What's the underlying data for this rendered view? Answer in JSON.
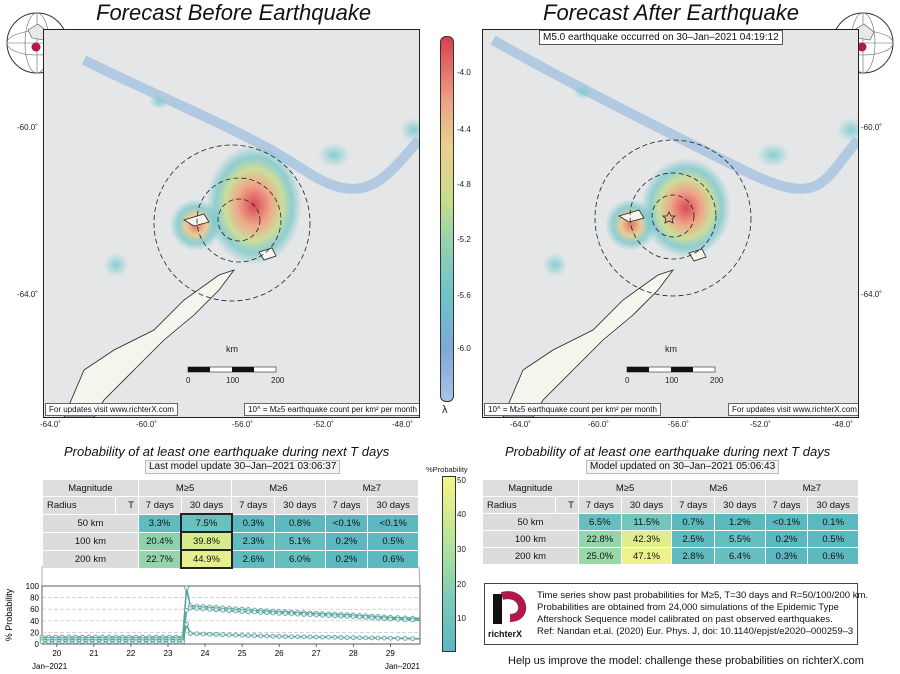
{
  "left_panel": {
    "title": "Forecast Before Earthquake",
    "credit": "For updates visit www.richterX.com",
    "density_label": "10^ = M≥5 earthquake count per km² per month",
    "lat_labels": [
      "-60.0˚",
      "-64.0˚"
    ],
    "lon_labels": [
      "-64.0˚",
      "-60.0˚",
      "-56.0˚",
      "-52.0˚",
      "-48.0˚"
    ],
    "scale_unit": "km",
    "scale_ticks": [
      "0",
      "100",
      "200"
    ]
  },
  "right_panel": {
    "title": "Forecast After Earthquake",
    "event_banner": "M5.0 earthquake occurred on 30–Jan–2021 04:19:12",
    "credit": "For updates visit www.richterX.com",
    "density_label": "10^ = M≥5 earthquake count per km² per month",
    "lat_labels": [
      "-60.0˚",
      "-64.0˚"
    ],
    "lon_labels": [
      "-64.0˚",
      "-60.0˚",
      "-56.0˚",
      "-52.0˚",
      "-48.0˚"
    ],
    "scale_unit": "km",
    "scale_ticks": [
      "0",
      "100",
      "200"
    ]
  },
  "lambda_colorbar": {
    "ticks": [
      "-4.0",
      "-4.4",
      "-4.8",
      "-5.2",
      "-5.6",
      "-6.0"
    ],
    "symbol": "λ"
  },
  "prob_colorbar": {
    "title": "%Probability",
    "ticks": [
      "50",
      "40",
      "30",
      "20",
      "10"
    ]
  },
  "tables": {
    "left_title": "Probability of at least one earthquake during next T days",
    "left_update": "Last model update 30–Jan–2021 03:06:37",
    "right_title": "Probability of at least one earthquake during next T days",
    "right_update": "Model updated on 30–Jan–2021 05:06:43",
    "magnitude_label": "Magnitude",
    "radius_label": "Radius",
    "t_label": "T",
    "magnitudes": [
      "M≥5",
      "M≥6",
      "M≥7"
    ],
    "periods": [
      "7 days",
      "30 days"
    ],
    "radii": [
      "50 km",
      "100 km",
      "200 km"
    ]
  },
  "chart_data": [
    {
      "type": "table",
      "title": "Probability of at least one earthquake during next T days",
      "rows": [
        "50 km",
        "100 km",
        "200 km"
      ],
      "columns": [
        "M≥5 7 days",
        "M≥5 30 days",
        "M≥6 7 days",
        "M≥6 30 days",
        "M≥7 7 days",
        "M≥7 30 days"
      ],
      "cells": [
        [
          "3.3%",
          "7.5%",
          "0.3%",
          "0.8%",
          "<0.1%",
          "<0.1%"
        ],
        [
          "20.4%",
          "39.8%",
          "2.3%",
          "5.1%",
          "0.2%",
          "0.5%"
        ],
        [
          "22.7%",
          "44.9%",
          "2.6%",
          "6.0%",
          "0.2%",
          "0.6%"
        ]
      ],
      "values": [
        [
          3.3,
          7.5,
          0.3,
          0.8,
          0.05,
          0.05
        ],
        [
          20.4,
          39.8,
          2.3,
          5.1,
          0.2,
          0.5
        ],
        [
          22.7,
          44.9,
          2.6,
          6.0,
          0.2,
          0.6
        ]
      ]
    },
    {
      "type": "table",
      "title": "Probability of at least one earthquake during next T days",
      "rows": [
        "50 km",
        "100 km",
        "200 km"
      ],
      "columns": [
        "M≥5 7 days",
        "M≥5 30 days",
        "M≥6 7 days",
        "M≥6 30 days",
        "M≥7 7 days",
        "M≥7 30 days"
      ],
      "cells": [
        [
          "6.5%",
          "11.5%",
          "0.7%",
          "1.2%",
          "<0.1%",
          "0.1%"
        ],
        [
          "22.8%",
          "42.3%",
          "2.5%",
          "5.5%",
          "0.2%",
          "0.5%"
        ],
        [
          "25.0%",
          "47.1%",
          "2.8%",
          "6.4%",
          "0.3%",
          "0.6%"
        ]
      ],
      "values": [
        [
          6.5,
          11.5,
          0.7,
          1.2,
          0.05,
          0.1
        ],
        [
          22.8,
          42.3,
          2.5,
          5.5,
          0.2,
          0.5
        ],
        [
          25.0,
          47.1,
          2.8,
          6.4,
          0.3,
          0.6
        ]
      ]
    },
    {
      "type": "line",
      "ylabel": "% Probability",
      "ylim": [
        0,
        100
      ],
      "yticks": [
        0,
        20,
        40,
        60,
        80,
        100
      ],
      "xlim": [
        19.6,
        29.8
      ],
      "xticks": [
        20,
        21,
        22,
        23,
        24,
        25,
        26,
        27,
        28,
        29
      ],
      "x_month_labels": [
        "Jan–2021",
        "Jan–2021"
      ],
      "series": [
        {
          "values_x": [
            19.6,
            23.4,
            23.5,
            23.6,
            25,
            26,
            27,
            28,
            29,
            29.8
          ],
          "values_y": [
            12,
            12,
            97,
            66,
            60,
            56,
            53,
            50,
            46,
            44
          ]
        },
        {
          "values_x": [
            19.6,
            23.4,
            23.5,
            23.6,
            25,
            26,
            27,
            28,
            29,
            29.8
          ],
          "values_y": [
            8,
            8,
            58,
            62,
            56,
            53,
            50,
            47,
            43,
            41
          ]
        },
        {
          "values_x": [
            19.6,
            23.4,
            23.5,
            23.6,
            25,
            26,
            27,
            28,
            29,
            29.8
          ],
          "values_y": [
            4,
            4,
            34,
            18,
            15,
            13,
            12,
            11,
            10,
            9
          ]
        }
      ]
    }
  ],
  "info_box": {
    "lines": [
      "Time series show past probabilities for M≥5, T=30 days and R=50/100/200 km.",
      "Probabilities are obtained from 24,000 simulations of the Epidemic Type",
      "Aftershock Sequence model calibrated on past observed earthquakes.",
      "Ref: Nandan et.al. (2020) Eur. Phys. J, doi: 10.1140/epjst/e2020–000259–3"
    ],
    "logo_text": "richterX"
  },
  "footer": "Help us improve the model: challenge these probabilities on richterX.com"
}
